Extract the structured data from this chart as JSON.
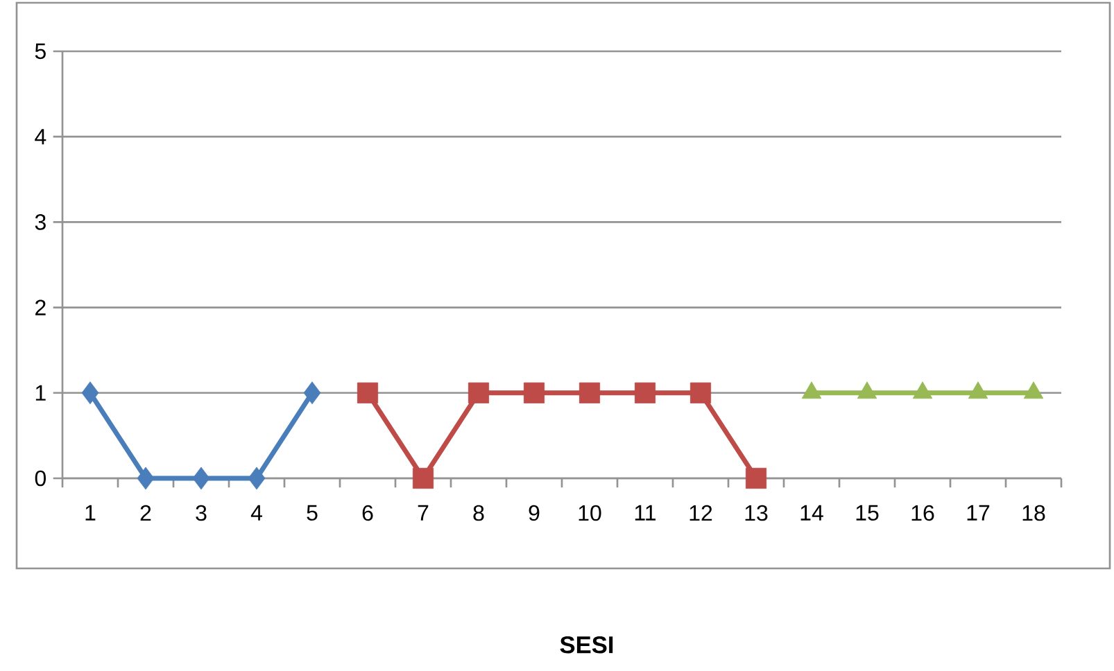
{
  "chart_data": {
    "type": "line",
    "xlabel": "SESI",
    "categories": [
      "1",
      "2",
      "3",
      "4",
      "5",
      "6",
      "7",
      "8",
      "9",
      "10",
      "11",
      "12",
      "13",
      "14",
      "15",
      "16",
      "17",
      "18"
    ],
    "series": [
      {
        "color": "#4a7ebb",
        "marker": "diamond",
        "values": [
          1,
          0,
          0,
          0,
          1,
          null,
          null,
          null,
          null,
          null,
          null,
          null,
          null,
          null,
          null,
          null,
          null,
          null
        ]
      },
      {
        "color": "#be4b48",
        "marker": "square",
        "values": [
          null,
          null,
          null,
          null,
          null,
          1,
          0,
          1,
          1,
          1,
          1,
          1,
          0,
          null,
          null,
          null,
          null,
          null
        ]
      },
      {
        "color": "#98b954",
        "marker": "triangle",
        "values": [
          null,
          null,
          null,
          null,
          null,
          null,
          null,
          null,
          null,
          null,
          null,
          null,
          null,
          1,
          1,
          1,
          1,
          1
        ]
      }
    ],
    "ylim": [
      0,
      5
    ],
    "yticks": [
      0,
      1,
      2,
      3,
      4,
      5
    ],
    "grid": "y"
  }
}
